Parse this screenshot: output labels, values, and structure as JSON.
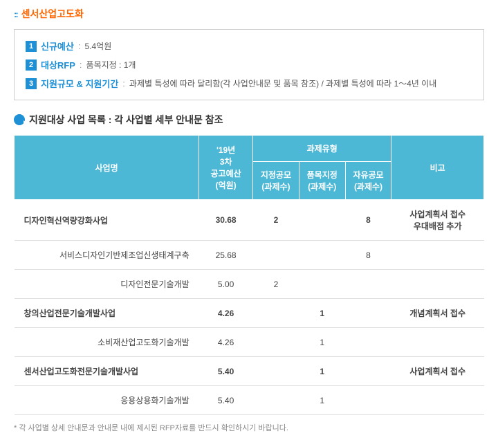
{
  "title": "센서산업고도화",
  "info": {
    "items": [
      {
        "num": "1",
        "label": "신규예산",
        "value": "5.4억원"
      },
      {
        "num": "2",
        "label": "대상RFP",
        "value": "품목지정 : 1개"
      },
      {
        "num": "3",
        "label": "지원규모 & 지원기간",
        "value": "과제별 특성에 따라 달리함(각 사업안내문 및 품목 참조) / 과제별 특성에 따라 1～4년 이내"
      }
    ]
  },
  "section_title": "지원대상 사업 목록 : 각 사업별 세부 안내문 참조",
  "table": {
    "headers": {
      "name": "사업명",
      "budget": "'19년\n3차\n공고예산\n(억원)",
      "type_group": "과제유형",
      "type1": "지정공모\n(과제수)",
      "type2": "품목지정\n(과제수)",
      "type3": "자유공모\n(과제수)",
      "note": "비고"
    },
    "rows": [
      {
        "kind": "main",
        "name": "디자인혁신역량강화사업",
        "budget": "30.68",
        "t1": "2",
        "t2": "",
        "t3": "8",
        "note": "사업계획서 접수\n우대배점 추가"
      },
      {
        "kind": "sub",
        "name": "서비스디자인기반제조업신생태계구축",
        "budget": "25.68",
        "t1": "",
        "t2": "",
        "t3": "8",
        "note": ""
      },
      {
        "kind": "sub",
        "name": "디자인전문기술개발",
        "budget": "5.00",
        "t1": "2",
        "t2": "",
        "t3": "",
        "note": ""
      },
      {
        "kind": "main",
        "name": "창의산업전문기술개발사업",
        "budget": "4.26",
        "t1": "",
        "t2": "1",
        "t3": "",
        "note": "개념계획서 접수"
      },
      {
        "kind": "sub",
        "name": "소비재산업고도화기술개발",
        "budget": "4.26",
        "t1": "",
        "t2": "1",
        "t3": "",
        "note": ""
      },
      {
        "kind": "main",
        "name": "센서산업고도화전문기술개발사업",
        "budget": "5.40",
        "t1": "",
        "t2": "1",
        "t3": "",
        "note": "사업계획서 접수"
      },
      {
        "kind": "sub",
        "name": "응용상용화기술개발",
        "budget": "5.40",
        "t1": "",
        "t2": "1",
        "t3": "",
        "note": ""
      }
    ]
  },
  "footnote": "* 각 사업별 상세 안내문과 안내문 내에 제시된 RFP자료를 반드시 확인하시기 바랍니다.",
  "colors": {
    "accent": "#1e90d6",
    "header_bg": "#4db8d6",
    "title_color": "#ff6600",
    "border": "#e0e0e0"
  }
}
